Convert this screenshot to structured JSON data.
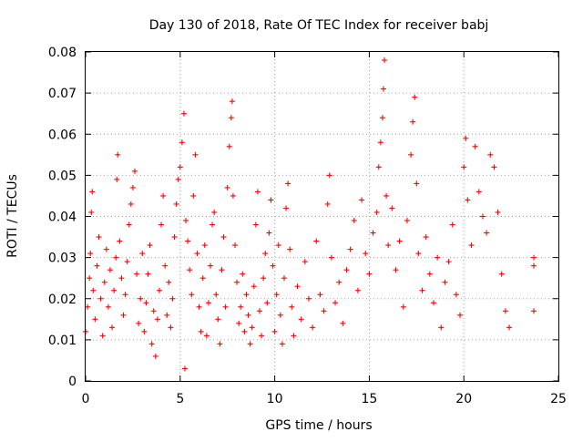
{
  "chart_data": {
    "type": "scatter",
    "title": "Day 130 of 2018, Rate Of TEC Index for receiver babj",
    "xlabel": "GPS time / hours",
    "ylabel": "ROTI / TECUs",
    "xlim": [
      0,
      25
    ],
    "ylim": [
      0,
      0.08
    ],
    "x_ticks": [
      "0",
      "5",
      "10",
      "15",
      "20",
      "25"
    ],
    "y_ticks": [
      "0",
      "0.01",
      "0.02",
      "0.03",
      "0.04",
      "0.05",
      "0.06",
      "0.07",
      "0.08"
    ],
    "grid": true,
    "marker": "plus",
    "series_color": "#ff0000",
    "series": [
      {
        "values": [
          [
            0.0,
            0.012
          ],
          [
            0.1,
            0.018
          ],
          [
            0.2,
            0.025
          ],
          [
            0.25,
            0.031
          ],
          [
            0.3,
            0.041
          ],
          [
            0.35,
            0.046
          ],
          [
            0.4,
            0.022
          ],
          [
            0.5,
            0.015
          ],
          [
            0.6,
            0.028
          ],
          [
            0.7,
            0.035
          ],
          [
            0.8,
            0.02
          ],
          [
            0.9,
            0.011
          ],
          [
            1.0,
            0.024
          ],
          [
            1.1,
            0.032
          ],
          [
            1.2,
            0.018
          ],
          [
            1.3,
            0.027
          ],
          [
            1.4,
            0.013
          ],
          [
            1.5,
            0.022
          ],
          [
            1.6,
            0.03
          ],
          [
            1.65,
            0.049
          ],
          [
            1.7,
            0.055
          ],
          [
            1.8,
            0.034
          ],
          [
            1.9,
            0.025
          ],
          [
            2.0,
            0.016
          ],
          [
            2.1,
            0.021
          ],
          [
            2.2,
            0.029
          ],
          [
            2.3,
            0.038
          ],
          [
            2.4,
            0.043
          ],
          [
            2.5,
            0.047
          ],
          [
            2.6,
            0.051
          ],
          [
            2.7,
            0.026
          ],
          [
            2.8,
            0.014
          ],
          [
            2.9,
            0.02
          ],
          [
            3.0,
            0.031
          ],
          [
            3.1,
            0.012
          ],
          [
            3.2,
            0.019
          ],
          [
            3.3,
            0.026
          ],
          [
            3.4,
            0.033
          ],
          [
            3.5,
            0.009
          ],
          [
            3.6,
            0.017
          ],
          [
            3.7,
            0.006
          ],
          [
            3.8,
            0.015
          ],
          [
            3.9,
            0.022
          ],
          [
            4.0,
            0.038
          ],
          [
            4.1,
            0.045
          ],
          [
            4.2,
            0.028
          ],
          [
            4.3,
            0.016
          ],
          [
            4.4,
            0.024
          ],
          [
            4.5,
            0.013
          ],
          [
            4.6,
            0.02
          ],
          [
            4.7,
            0.035
          ],
          [
            4.8,
            0.043
          ],
          [
            4.9,
            0.049
          ],
          [
            5.0,
            0.052
          ],
          [
            5.1,
            0.058
          ],
          [
            5.2,
            0.065
          ],
          [
            5.25,
            0.003
          ],
          [
            5.3,
            0.039
          ],
          [
            5.4,
            0.034
          ],
          [
            5.5,
            0.027
          ],
          [
            5.6,
            0.021
          ],
          [
            5.7,
            0.045
          ],
          [
            5.8,
            0.055
          ],
          [
            5.9,
            0.031
          ],
          [
            6.0,
            0.018
          ],
          [
            6.1,
            0.012
          ],
          [
            6.2,
            0.025
          ],
          [
            6.3,
            0.033
          ],
          [
            6.4,
            0.011
          ],
          [
            6.5,
            0.019
          ],
          [
            6.6,
            0.028
          ],
          [
            6.7,
            0.038
          ],
          [
            6.8,
            0.041
          ],
          [
            6.9,
            0.021
          ],
          [
            7.0,
            0.015
          ],
          [
            7.1,
            0.009
          ],
          [
            7.2,
            0.027
          ],
          [
            7.3,
            0.035
          ],
          [
            7.4,
            0.018
          ],
          [
            7.5,
            0.047
          ],
          [
            7.6,
            0.057
          ],
          [
            7.7,
            0.064
          ],
          [
            7.75,
            0.068
          ],
          [
            7.8,
            0.045
          ],
          [
            7.9,
            0.033
          ],
          [
            8.0,
            0.024
          ],
          [
            8.1,
            0.014
          ],
          [
            8.2,
            0.018
          ],
          [
            8.3,
            0.026
          ],
          [
            8.4,
            0.012
          ],
          [
            8.5,
            0.021
          ],
          [
            8.6,
            0.016
          ],
          [
            8.7,
            0.009
          ],
          [
            8.8,
            0.013
          ],
          [
            8.9,
            0.023
          ],
          [
            9.0,
            0.038
          ],
          [
            9.1,
            0.046
          ],
          [
            9.2,
            0.017
          ],
          [
            9.3,
            0.011
          ],
          [
            9.4,
            0.025
          ],
          [
            9.5,
            0.031
          ],
          [
            9.6,
            0.019
          ],
          [
            9.7,
            0.036
          ],
          [
            9.8,
            0.044
          ],
          [
            9.9,
            0.028
          ],
          [
            10.0,
            0.012
          ],
          [
            10.1,
            0.021
          ],
          [
            10.2,
            0.033
          ],
          [
            10.3,
            0.016
          ],
          [
            10.4,
            0.009
          ],
          [
            10.5,
            0.025
          ],
          [
            10.6,
            0.042
          ],
          [
            10.7,
            0.048
          ],
          [
            10.8,
            0.032
          ],
          [
            10.9,
            0.018
          ],
          [
            11.0,
            0.011
          ],
          [
            11.2,
            0.023
          ],
          [
            11.4,
            0.015
          ],
          [
            11.6,
            0.029
          ],
          [
            11.8,
            0.02
          ],
          [
            12.0,
            0.013
          ],
          [
            12.2,
            0.034
          ],
          [
            12.4,
            0.021
          ],
          [
            12.6,
            0.017
          ],
          [
            12.8,
            0.043
          ],
          [
            12.9,
            0.05
          ],
          [
            13.0,
            0.03
          ],
          [
            13.2,
            0.019
          ],
          [
            13.4,
            0.024
          ],
          [
            13.6,
            0.014
          ],
          [
            13.8,
            0.027
          ],
          [
            14.0,
            0.032
          ],
          [
            14.2,
            0.039
          ],
          [
            14.4,
            0.022
          ],
          [
            14.6,
            0.044
          ],
          [
            14.8,
            0.031
          ],
          [
            15.0,
            0.026
          ],
          [
            15.2,
            0.036
          ],
          [
            15.4,
            0.041
          ],
          [
            15.5,
            0.052
          ],
          [
            15.6,
            0.058
          ],
          [
            15.7,
            0.064
          ],
          [
            15.75,
            0.071
          ],
          [
            15.8,
            0.078
          ],
          [
            15.9,
            0.045
          ],
          [
            16.0,
            0.033
          ],
          [
            16.2,
            0.042
          ],
          [
            16.4,
            0.027
          ],
          [
            16.6,
            0.034
          ],
          [
            16.8,
            0.018
          ],
          [
            17.0,
            0.039
          ],
          [
            17.2,
            0.055
          ],
          [
            17.3,
            0.063
          ],
          [
            17.4,
            0.069
          ],
          [
            17.5,
            0.048
          ],
          [
            17.6,
            0.031
          ],
          [
            17.8,
            0.022
          ],
          [
            18.0,
            0.035
          ],
          [
            18.2,
            0.026
          ],
          [
            18.4,
            0.019
          ],
          [
            18.6,
            0.03
          ],
          [
            18.8,
            0.013
          ],
          [
            19.0,
            0.024
          ],
          [
            19.2,
            0.029
          ],
          [
            19.4,
            0.038
          ],
          [
            19.6,
            0.021
          ],
          [
            19.8,
            0.016
          ],
          [
            20.0,
            0.052
          ],
          [
            20.1,
            0.059
          ],
          [
            20.2,
            0.044
          ],
          [
            20.4,
            0.033
          ],
          [
            20.6,
            0.057
          ],
          [
            20.8,
            0.046
          ],
          [
            21.0,
            0.04
          ],
          [
            21.2,
            0.036
          ],
          [
            21.4,
            0.055
          ],
          [
            21.6,
            0.052
          ],
          [
            21.8,
            0.041
          ],
          [
            22.0,
            0.026
          ],
          [
            22.2,
            0.017
          ],
          [
            22.4,
            0.013
          ],
          [
            23.7,
            0.03
          ],
          [
            23.7,
            0.028
          ],
          [
            23.7,
            0.017
          ]
        ]
      }
    ]
  }
}
